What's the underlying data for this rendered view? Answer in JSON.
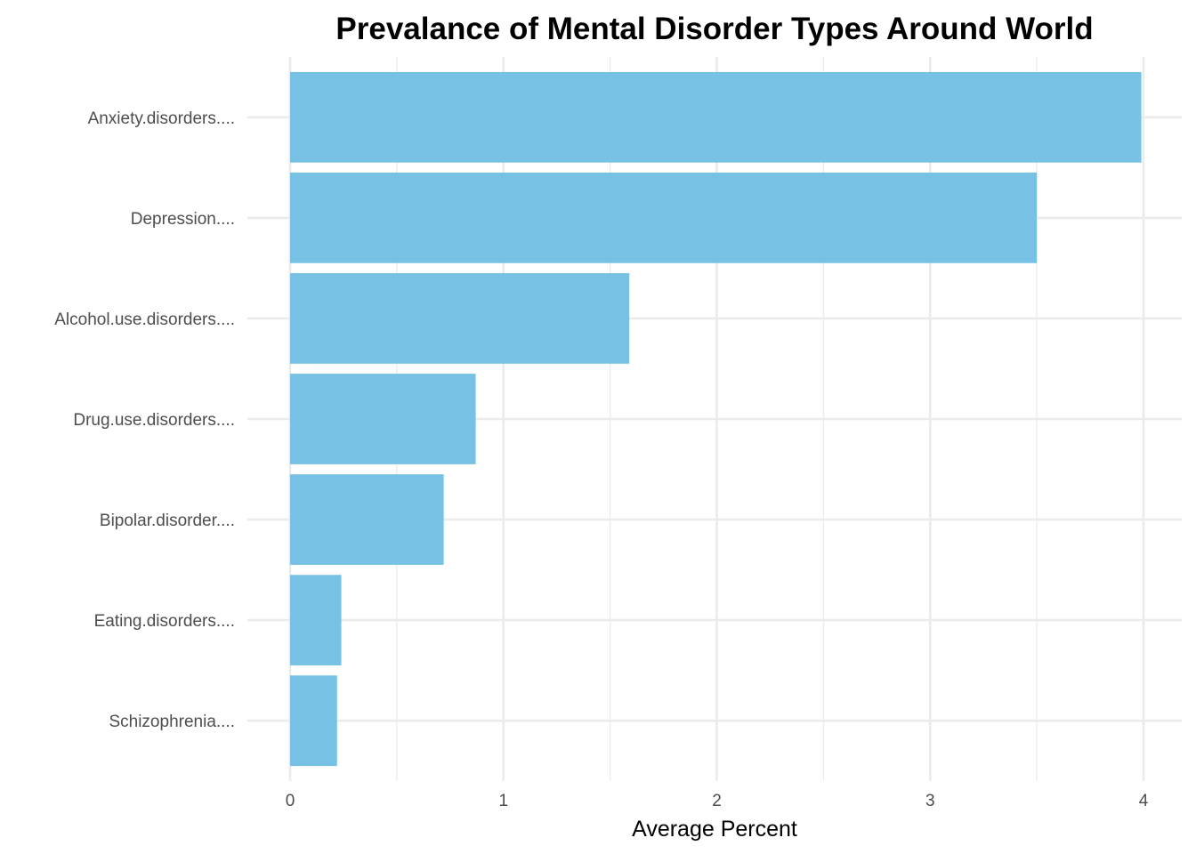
{
  "chart_data": {
    "type": "bar",
    "orientation": "horizontal",
    "title": "Prevalance of Mental Disorder Types Around World",
    "xlabel": "Average Percent",
    "ylabel": "",
    "categories": [
      "Anxiety.disorders....",
      "Depression....",
      "Alcohol.use.disorders....",
      "Drug.use.disorders....",
      "Bipolar.disorder....",
      "Eating.disorders....",
      "Schizophrenia...."
    ],
    "values": [
      3.99,
      3.5,
      1.59,
      0.87,
      0.72,
      0.24,
      0.22
    ],
    "xlim": [
      0,
      4.15
    ],
    "x_ticks": [
      0,
      1,
      2,
      3,
      4
    ],
    "x_tick_labels": [
      "0",
      "1",
      "2",
      "3",
      "4"
    ],
    "grid": true,
    "bar_color": "#77c1e4",
    "grid_color": "#ebebeb"
  }
}
